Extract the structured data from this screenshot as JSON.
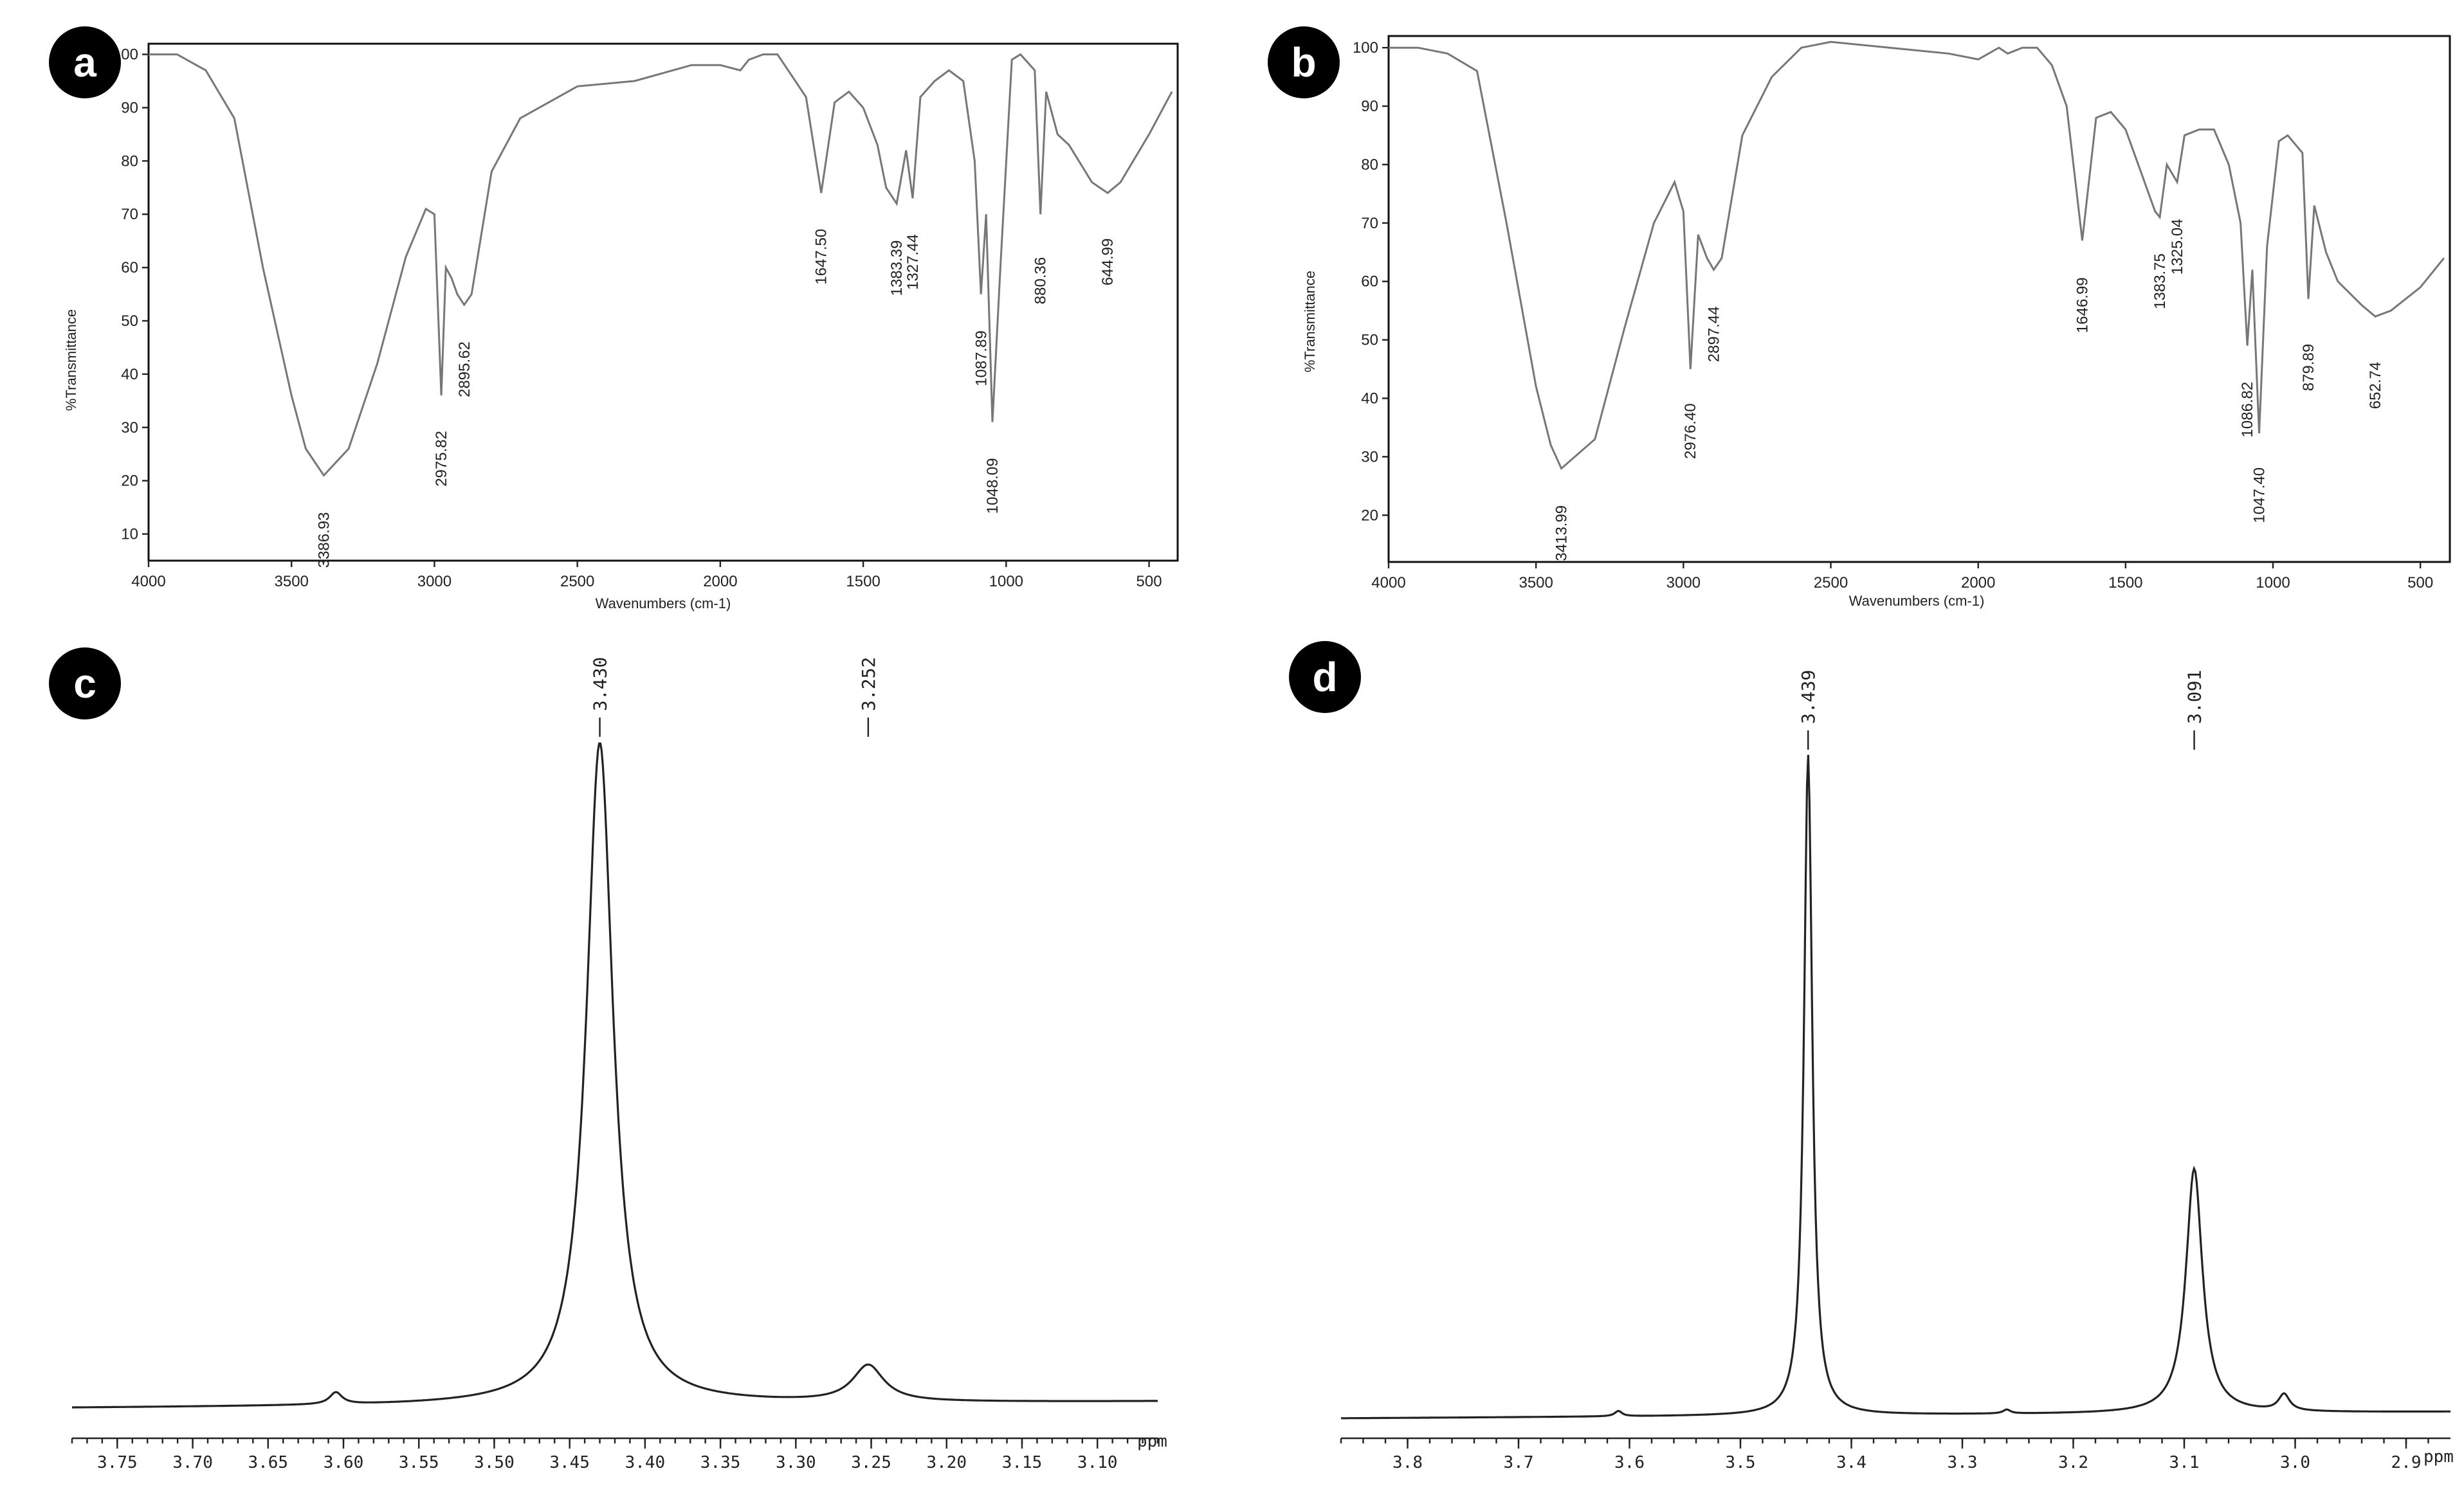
{
  "chart_data": [
    {
      "panel": "a",
      "type": "line",
      "xlabel": "Wavenumbers (cm-1)",
      "ylabel": "%Transmittance",
      "xlim": [
        4000,
        400
      ],
      "ylim": [
        5,
        102
      ],
      "x_ticks": [
        "4000",
        "3500",
        "3000",
        "2500",
        "2000",
        "1500",
        "1000",
        "500"
      ],
      "y_ticks": [
        "10",
        "20",
        "30",
        "40",
        "50",
        "60",
        "70",
        "80",
        "90",
        "100"
      ],
      "series": [
        {
          "x": [
            4000,
            3900,
            3800,
            3700,
            3600,
            3500,
            3450,
            3387,
            3300,
            3200,
            3100,
            3030,
            3000,
            2976,
            2960,
            2940,
            2920,
            2896,
            2870,
            2800,
            2700,
            2600,
            2500,
            2300,
            2100,
            2000,
            1930,
            1900,
            1850,
            1800,
            1750,
            1700,
            1647,
            1600,
            1550,
            1500,
            1450,
            1420,
            1383,
            1350,
            1327,
            1300,
            1250,
            1200,
            1150,
            1110,
            1088,
            1070,
            1048,
            1020,
            980,
            950,
            900,
            880,
            860,
            820,
            780,
            700,
            645,
            600,
            500,
            420
          ],
          "y": [
            100,
            100,
            97,
            88,
            60,
            36,
            26,
            21,
            26,
            42,
            62,
            71,
            70,
            36,
            60,
            58,
            55,
            53,
            55,
            78,
            88,
            91,
            94,
            95,
            98,
            98,
            97,
            99,
            100,
            100,
            96,
            92,
            74,
            91,
            93,
            90,
            83,
            75,
            72,
            82,
            73,
            92,
            95,
            97,
            95,
            80,
            55,
            70,
            31,
            60,
            99,
            100,
            97,
            70,
            93,
            85,
            83,
            76,
            74,
            76,
            85,
            93
          ]
        }
      ],
      "annotations": [
        "3386.93",
        "2975.82",
        "2895.62",
        "1647.50",
        "1383.39",
        "1327.44",
        "1087.89",
        "1048.09",
        "880.36",
        "644.99"
      ],
      "annotation_x": [
        3386.93,
        2975.82,
        2895.62,
        1647.5,
        1383.39,
        1327.44,
        1087.89,
        1048.09,
        880.36,
        644.99
      ]
    },
    {
      "panel": "b",
      "type": "line",
      "xlabel": "Wavenumbers (cm-1)",
      "ylabel": "%Transmittance",
      "xlim": [
        4000,
        400
      ],
      "ylim": [
        12,
        102
      ],
      "x_ticks": [
        "4000",
        "3500",
        "3000",
        "2500",
        "2000",
        "1500",
        "1000",
        "500"
      ],
      "y_ticks": [
        "20",
        "30",
        "40",
        "50",
        "60",
        "70",
        "80",
        "90",
        "100"
      ],
      "series": [
        {
          "x": [
            4000,
            3900,
            3800,
            3700,
            3600,
            3500,
            3450,
            3414,
            3300,
            3200,
            3100,
            3030,
            3000,
            2976,
            2950,
            2920,
            2897,
            2870,
            2800,
            2700,
            2600,
            2500,
            2300,
            2100,
            2000,
            1930,
            1900,
            1850,
            1800,
            1750,
            1700,
            1647,
            1600,
            1550,
            1500,
            1450,
            1400,
            1384,
            1360,
            1325,
            1300,
            1250,
            1200,
            1150,
            1110,
            1087,
            1070,
            1047,
            1020,
            980,
            950,
            900,
            880,
            860,
            820,
            780,
            700,
            653,
            600,
            500,
            420
          ],
          "y": [
            100,
            100,
            99,
            96,
            70,
            42,
            32,
            28,
            33,
            52,
            70,
            77,
            72,
            45,
            68,
            64,
            62,
            64,
            85,
            95,
            100,
            101,
            100,
            99,
            98,
            100,
            99,
            100,
            100,
            97,
            90,
            67,
            88,
            89,
            86,
            79,
            72,
            71,
            80,
            77,
            85,
            86,
            86,
            80,
            70,
            49,
            62,
            34,
            66,
            84,
            85,
            82,
            57,
            73,
            65,
            60,
            56,
            54,
            55,
            59,
            64
          ]
        }
      ],
      "annotations": [
        "3413.99",
        "2976.40",
        "2897.44",
        "1646.99",
        "1383.75",
        "1325.04",
        "1086.82",
        "1047.40",
        "879.89",
        "652.74"
      ],
      "annotation_x": [
        3413.99,
        2976.4,
        2897.44,
        1646.99,
        1383.75,
        1325.04,
        1086.82,
        1047.4,
        879.89,
        652.74
      ]
    },
    {
      "panel": "c",
      "type": "line",
      "xlabel": "ppm",
      "xlim": [
        3.78,
        3.06
      ],
      "x_ticks": [
        "3.75",
        "3.70",
        "3.65",
        "3.60",
        "3.55",
        "3.50",
        "3.45",
        "3.40",
        "3.35",
        "3.30",
        "3.25",
        "3.20",
        "3.15",
        "3.10"
      ],
      "x_tick_values": [
        3.75,
        3.7,
        3.65,
        3.6,
        3.55,
        3.5,
        3.45,
        3.4,
        3.35,
        3.3,
        3.25,
        3.2,
        3.15,
        3.1
      ],
      "peaks": [
        {
          "ppm": 3.43,
          "label": "3.430",
          "height": 1.0,
          "width": 0.0215,
          "clipped": true
        },
        {
          "ppm": 3.252,
          "label": "3.252",
          "height": 0.055,
          "width": 0.025
        },
        {
          "ppm": 3.605,
          "label": "",
          "height": 0.018,
          "width": 0.01
        }
      ]
    },
    {
      "panel": "d",
      "type": "line",
      "xlabel": "ppm",
      "xlim": [
        3.86,
        2.86
      ],
      "x_ticks": [
        "3.8",
        "3.7",
        "3.6",
        "3.5",
        "3.4",
        "3.3",
        "3.2",
        "3.1",
        "3.0",
        "2.9"
      ],
      "x_tick_values": [
        3.8,
        3.7,
        3.6,
        3.5,
        3.4,
        3.3,
        3.2,
        3.1,
        3.0,
        2.9
      ],
      "peaks": [
        {
          "ppm": 3.439,
          "label": "3.439",
          "height": 1.0,
          "width": 0.009,
          "clipped": true
        },
        {
          "ppm": 3.091,
          "label": "3.091",
          "height": 0.37,
          "width": 0.018
        },
        {
          "ppm": 3.61,
          "label": "",
          "height": 0.008,
          "width": 0.008
        },
        {
          "ppm": 3.26,
          "label": "",
          "height": 0.006,
          "width": 0.008
        },
        {
          "ppm": 3.01,
          "label": "",
          "height": 0.025,
          "width": 0.012
        }
      ]
    }
  ],
  "panels": {
    "a": {
      "badge": "a"
    },
    "b": {
      "badge": "b"
    },
    "c": {
      "badge": "c"
    },
    "d": {
      "badge": "d"
    }
  }
}
